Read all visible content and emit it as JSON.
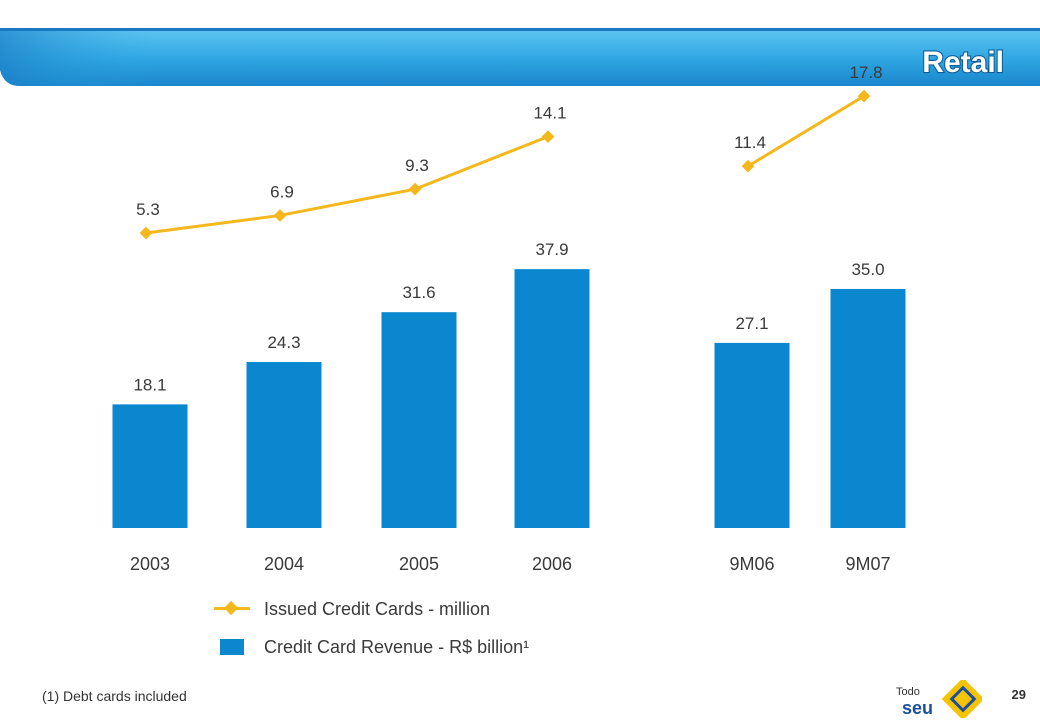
{
  "header": {
    "title": "Retail"
  },
  "chart_data": {
    "type": "bar",
    "categories": [
      "2003",
      "2004",
      "2005",
      "2006",
      "9M06",
      "9M07"
    ],
    "series": [
      {
        "name": "Issued Credit Cards - million",
        "type": "line",
        "values": [
          5.3,
          6.9,
          9.3,
          14.1,
          11.4,
          17.8
        ],
        "labels": [
          "5.3",
          "6.9",
          "9.3",
          "14.1",
          "11.4",
          "17.8"
        ],
        "color": "#f5b81c"
      },
      {
        "name": "Credit Card Revenue - R$ billion¹",
        "type": "bar",
        "values": [
          18.1,
          24.3,
          31.6,
          37.9,
          27.1,
          35.0
        ],
        "labels": [
          "18.1",
          "24.3",
          "31.6",
          "37.9",
          "27.1",
          "35.0"
        ],
        "color": "#0a87cf"
      }
    ],
    "line_groups": [
      [
        0,
        1,
        2,
        3
      ],
      [
        4,
        5
      ]
    ],
    "grid": false,
    "legend_position": "bottom"
  },
  "legend": {
    "line_label": "Issued Credit Cards - million",
    "bar_label": "Credit Card Revenue - R$ billion¹"
  },
  "footer": {
    "footnote": "(1) Debt cards included",
    "page_number": "29",
    "logo_text_top": "Todo",
    "logo_text_bottom": "seu"
  },
  "colors": {
    "banner_light": "#4db8ec",
    "banner_dark": "#1273bd",
    "bar": "#0a87cf",
    "line": "#f5b81c",
    "logo_yellow": "#f5c400",
    "logo_blue": "#1b4f9e"
  }
}
